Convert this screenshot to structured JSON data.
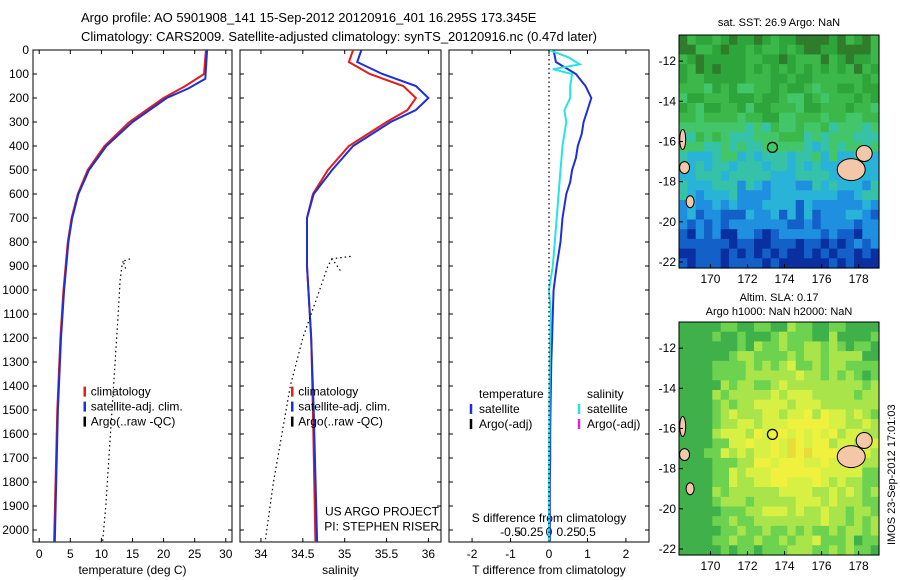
{
  "header": {
    "line1": "Argo profile: AO 5901908_141 15-Sep-2012 20120916_401 16.295S 173.345E",
    "line2": "Climatology: CARS2009. Satellite-adjusted climatology: synTS_20120916.nc (0.47d later)"
  },
  "side_stamp": "IMOS 23-Sep-2012 17:01:03",
  "depth_ticks": [
    0,
    100,
    200,
    300,
    400,
    500,
    600,
    700,
    800,
    900,
    1000,
    1100,
    1200,
    1300,
    1400,
    1500,
    1600,
    1700,
    1800,
    1900,
    2000
  ],
  "colors": {
    "clim": "#e11d1d",
    "sat": "#1e2fd6",
    "argo": "#000000",
    "sat_salinity": "#27e3e3",
    "argo_salinity": "#d62ad6"
  },
  "chart_data": [
    {
      "id": "temperature",
      "type": "line",
      "xlabel": "temperature (deg C)",
      "ylabel": "",
      "xlim": [
        -1,
        31
      ],
      "ylim": [
        2050,
        0
      ],
      "xticks": [
        0,
        5,
        10,
        15,
        20,
        25,
        30
      ],
      "legend": [
        "climatology",
        "satellite-adj. clim.",
        "Argo(..raw -QC)"
      ],
      "legend_position": "lower-center",
      "series": [
        {
          "name": "climatology",
          "color_key": "clim",
          "depth": [
            0,
            100,
            150,
            200,
            300,
            400,
            500,
            600,
            700,
            800,
            1000,
            1200,
            1500,
            2050
          ],
          "values": [
            26.8,
            26.5,
            23.5,
            20.0,
            14.5,
            10.5,
            7.8,
            6.2,
            5.2,
            4.6,
            3.9,
            3.4,
            2.9,
            2.4
          ]
        },
        {
          "name": "satellite-adj. clim.",
          "color_key": "sat",
          "depth": [
            0,
            120,
            160,
            200,
            300,
            400,
            500,
            600,
            700,
            800,
            1000,
            1200,
            1500,
            2050
          ],
          "values": [
            27.0,
            26.7,
            24.0,
            20.5,
            15.0,
            10.8,
            8.0,
            6.3,
            5.3,
            4.7,
            4.0,
            3.5,
            3.0,
            2.5
          ]
        },
        {
          "name": "Argo(..raw -QC)",
          "color_key": "argo",
          "dotted": true,
          "depth": [
            880,
            900,
            960,
            1100,
            1300,
            1500,
            1700,
            1900,
            2050
          ],
          "values": [
            13.5,
            13.3,
            13.0,
            12.7,
            12.2,
            11.7,
            11.2,
            10.7,
            10.2
          ]
        }
      ],
      "aux_lines": [
        {
          "color_key": "argo",
          "dotted": true,
          "depth": [
            870,
            880,
            920
          ],
          "values": [
            14.6,
            13.5,
            14.0
          ]
        }
      ]
    },
    {
      "id": "salinity",
      "type": "line",
      "xlabel": "salinity",
      "ylabel": "",
      "xlim": [
        33.75,
        36.15
      ],
      "ylim": [
        2050,
        0
      ],
      "xticks": [
        34,
        34.5,
        35,
        35.5,
        36
      ],
      "xticklabels": [
        "34",
        "34.5",
        "35",
        "35.5",
        "36"
      ],
      "legend": [
        "climatology",
        "satellite-adj. clim.",
        "Argo(..raw -QC)"
      ],
      "legend_position": "lower-center",
      "annotation": [
        "US ARGO PROJECT",
        "PI: STEPHEN RISER"
      ],
      "series": [
        {
          "name": "climatology",
          "color_key": "clim",
          "depth": [
            0,
            50,
            100,
            150,
            200,
            250,
            300,
            400,
            500,
            600,
            700,
            900,
            1200,
            1500,
            2050
          ],
          "values": [
            35.1,
            35.05,
            35.3,
            35.7,
            35.85,
            35.75,
            35.5,
            35.05,
            34.8,
            34.62,
            34.55,
            34.55,
            34.6,
            34.62,
            34.65
          ]
        },
        {
          "name": "satellite-adj. clim.",
          "color_key": "sat",
          "depth": [
            0,
            50,
            100,
            150,
            200,
            250,
            300,
            400,
            500,
            600,
            700,
            900,
            1200,
            1500,
            2050
          ],
          "values": [
            35.2,
            35.15,
            35.45,
            35.85,
            36.0,
            35.85,
            35.55,
            35.1,
            34.85,
            34.63,
            34.55,
            34.55,
            34.6,
            34.63,
            34.67
          ]
        },
        {
          "name": "Argo(..raw -QC)",
          "color_key": "argo",
          "dotted": true,
          "depth": [
            870,
            900,
            1000,
            1200,
            1400,
            1600,
            1800,
            2050
          ],
          "values": [
            34.85,
            34.8,
            34.7,
            34.5,
            34.35,
            34.25,
            34.15,
            34.05
          ]
        }
      ],
      "aux_lines": [
        {
          "color_key": "argo",
          "dotted": true,
          "depth": [
            860,
            870,
            920
          ],
          "values": [
            35.07,
            34.85,
            34.95
          ]
        }
      ]
    },
    {
      "id": "difference",
      "type": "line",
      "xlabel": "T difference from climatology",
      "xlabel2": "S difference from climatology",
      "xlim": [
        -2.6,
        2.6
      ],
      "ylim": [
        2050,
        0
      ],
      "xticks": [
        -2,
        -1,
        0,
        1,
        2
      ],
      "xticklabels": [
        "-2",
        "-1",
        "0",
        "1",
        "2"
      ],
      "xticks2": [
        -1,
        -0.5,
        0,
        0.5,
        1
      ],
      "xticklabels2": [
        "-0.5",
        "-0.25",
        "0",
        "0.25",
        "0.5"
      ],
      "legend_columns": [
        {
          "heading": "temperature",
          "items": [
            {
              "label": "satellite",
              "color_key": "sat"
            },
            {
              "label": "Argo(-adj)",
              "color_key": "argo"
            }
          ]
        },
        {
          "heading": "salinity",
          "items": [
            {
              "label": "satellite",
              "color_key": "sat_salinity"
            },
            {
              "label": "Argo(-adj)",
              "color_key": "argo_salinity"
            }
          ]
        }
      ],
      "series": [
        {
          "name": "temperature satellite",
          "color_key": "sat",
          "depth": [
            0,
            50,
            100,
            150,
            200,
            250,
            300,
            350,
            400,
            450,
            500,
            550,
            600,
            700,
            800,
            900,
            1000,
            1100,
            1200,
            1300,
            1400,
            1500,
            1600,
            1700,
            1800,
            1900,
            2050
          ],
          "values": [
            0.12,
            0.18,
            0.7,
            0.95,
            1.1,
            1.0,
            0.9,
            0.85,
            0.75,
            0.7,
            0.6,
            0.55,
            0.45,
            0.35,
            0.3,
            0.2,
            0.12,
            0.1,
            0.08,
            0.06,
            0.05,
            0.04,
            0.03,
            0.03,
            0.02,
            0.02,
            0.02
          ]
        },
        {
          "name": "salinity satellite",
          "color_key": "sat_salinity",
          "depth": [
            0,
            30,
            60,
            80,
            100,
            150,
            200,
            250,
            300,
            400,
            500,
            600,
            700,
            800,
            900,
            1000,
            1100,
            1200,
            1300,
            1500,
            1800,
            2050
          ],
          "values": [
            0.0,
            0.5,
            0.8,
            0.1,
            0.6,
            0.55,
            0.55,
            0.4,
            0.45,
            0.35,
            0.3,
            0.25,
            0.2,
            0.15,
            0.1,
            0.0,
            0.05,
            0.03,
            0.02,
            0.01,
            0.0,
            0.0
          ]
        },
        {
          "name": "zero line",
          "color_key": "argo",
          "dotted": true,
          "depth": [
            0,
            2050
          ],
          "values": [
            0,
            0
          ]
        }
      ]
    },
    {
      "id": "sst_map",
      "type": "heatmap",
      "title": "sat. SST: 26.9 Argo: NaN",
      "xlim": [
        168.3,
        179.1
      ],
      "ylim": [
        -22.3,
        -10.7
      ],
      "xticks": [
        170,
        172,
        174,
        176,
        178
      ],
      "yticks": [
        -12,
        -14,
        -16,
        -18,
        -20,
        -22
      ],
      "argo_position": [
        173.345,
        -16.295
      ],
      "palette": [
        "#2f7d2a",
        "#2ea53a",
        "#3cb84a",
        "#43c56a",
        "#36c2a8",
        "#29b3d8",
        "#1f8fe0",
        "#1360c8",
        "#0a2fa0"
      ]
    },
    {
      "id": "sla_map",
      "type": "heatmap",
      "title": "Altim. SLA: 0.17",
      "title2": "Argo h1000: NaN h2000: NaN",
      "xlim": [
        168.3,
        179.1
      ],
      "ylim": [
        -22.3,
        -10.7
      ],
      "xticks": [
        170,
        172,
        174,
        176,
        178
      ],
      "yticks": [
        -12,
        -14,
        -16,
        -18,
        -20,
        -22
      ],
      "argo_position": [
        173.345,
        -16.295
      ],
      "palette": [
        "#3fb04a",
        "#6dd24f",
        "#a8e44a",
        "#d8ef44",
        "#f0f03e",
        "#e6dc3a"
      ]
    }
  ]
}
